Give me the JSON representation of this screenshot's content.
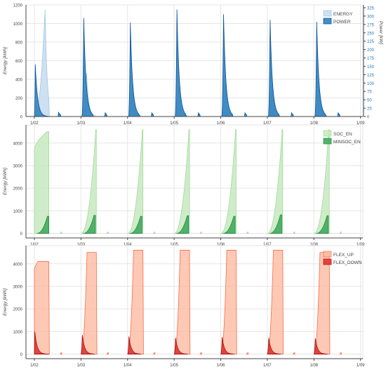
{
  "chart_data": [
    {
      "type": "area",
      "x_unit": "day",
      "x_ticks": [
        "1/02",
        "1/03",
        "1/04",
        "1/05",
        "1/06",
        "1/07",
        "1/08",
        "1/09"
      ],
      "xlim": [
        1.82,
        9.05
      ],
      "ylabel": "Energy [kWh]",
      "ylim": [
        0,
        1200
      ],
      "y_ticks": [
        0,
        200,
        400,
        600,
        800,
        1000,
        1200
      ],
      "y2label": "Power [kW]",
      "y2lim": [
        0,
        1200
      ],
      "y2_ticks": [
        0,
        25,
        50,
        75,
        100,
        125,
        150,
        175,
        200,
        225,
        250,
        275,
        300,
        325
      ],
      "y2_tick_spacing": 90,
      "grid": true,
      "legend_position": "top-right",
      "series": [
        {
          "name": "ENERGY",
          "color": "#c6dbef",
          "stroke": "#9ecae1",
          "opacity": 0.85,
          "decay": 0.045,
          "events": [
            {
              "day": 2.0,
              "start": 0.0,
              "peak": 0.23,
              "end": 0.31,
              "value": 1150
            },
            {
              "day": 3.0,
              "start": 0.02,
              "peak": 0.12,
              "end": 0.3,
              "value": 470
            },
            {
              "day": 4.0,
              "start": 0.02,
              "peak": 0.11,
              "end": 0.28,
              "value": 360
            },
            {
              "day": 5.0,
              "start": 0.02,
              "peak": 0.1,
              "end": 0.27,
              "value": 330
            },
            {
              "day": 6.0,
              "start": 0.02,
              "peak": 0.1,
              "end": 0.26,
              "value": 350
            },
            {
              "day": 7.0,
              "start": 0.02,
              "peak": 0.1,
              "end": 0.26,
              "value": 320
            },
            {
              "day": 8.0,
              "start": 0.02,
              "peak": 0.1,
              "end": 0.27,
              "value": 380
            }
          ]
        },
        {
          "name": "POWER",
          "color": "#3182bd",
          "stroke": "#08519c",
          "opacity": 0.9,
          "decay": 0.05,
          "events": [
            {
              "day": 2.0,
              "start": 0.0,
              "peak": 0.02,
              "end": 0.3,
              "value": 560
            },
            {
              "day": 2.5,
              "start": 0.0,
              "peak": 0.02,
              "end": 0.06,
              "value": 45
            },
            {
              "day": 3.0,
              "start": 0.02,
              "peak": 0.06,
              "end": 0.25,
              "value": 1060
            },
            {
              "day": 3.5,
              "start": 0.0,
              "peak": 0.02,
              "end": 0.05,
              "value": 40
            },
            {
              "day": 4.0,
              "start": 0.02,
              "peak": 0.06,
              "end": 0.25,
              "value": 1010
            },
            {
              "day": 4.5,
              "start": 0.0,
              "peak": 0.02,
              "end": 0.05,
              "value": 40
            },
            {
              "day": 5.0,
              "start": 0.02,
              "peak": 0.06,
              "end": 0.25,
              "value": 1150
            },
            {
              "day": 5.5,
              "start": 0.0,
              "peak": 0.02,
              "end": 0.05,
              "value": 40
            },
            {
              "day": 6.0,
              "start": 0.02,
              "peak": 0.06,
              "end": 0.25,
              "value": 1100
            },
            {
              "day": 6.5,
              "start": 0.0,
              "peak": 0.02,
              "end": 0.05,
              "value": 40
            },
            {
              "day": 7.0,
              "start": 0.02,
              "peak": 0.06,
              "end": 0.25,
              "value": 1040
            },
            {
              "day": 7.5,
              "start": 0.0,
              "peak": 0.02,
              "end": 0.05,
              "value": 40
            },
            {
              "day": 8.0,
              "start": 0.02,
              "peak": 0.06,
              "end": 0.25,
              "value": 1020
            },
            {
              "day": 8.5,
              "start": 0.0,
              "peak": 0.02,
              "end": 0.05,
              "value": 40
            }
          ]
        }
      ]
    },
    {
      "type": "area",
      "x_unit": "day",
      "x_ticks": [
        "1/02",
        "1/03",
        "1/04",
        "1/05",
        "1/06",
        "1/07",
        "1/08",
        "1/09"
      ],
      "xlim": [
        1.82,
        9.05
      ],
      "ylabel": "Energy [kWh]",
      "ylim": [
        -200,
        4800
      ],
      "y_ticks": [
        0,
        1000,
        2000,
        3000,
        4000
      ],
      "grid": true,
      "legend_position": "top-right",
      "series": [
        {
          "name": "SOC_EN",
          "color": "#c7e9c0",
          "stroke": "#a1d99b",
          "opacity": 0.85,
          "events": [
            {
              "day": 2.0,
              "start": 0.0,
              "peak": 0.27,
              "end": 0.31,
              "value": 4500,
              "from": 3700,
              "cap": 0.0
            },
            {
              "day": 3.0,
              "start": 0.0,
              "peak": 0.32,
              "end": 0.33,
              "value": 4600,
              "cap": 0.0
            },
            {
              "day": 4.0,
              "start": 0.0,
              "peak": 0.32,
              "end": 0.33,
              "value": 4600,
              "cap": 0.0
            },
            {
              "day": 5.0,
              "start": 0.0,
              "peak": 0.32,
              "end": 0.33,
              "value": 4600,
              "cap": 0.0
            },
            {
              "day": 6.0,
              "start": 0.0,
              "peak": 0.32,
              "end": 0.33,
              "value": 4600,
              "cap": 0.0
            },
            {
              "day": 7.0,
              "start": 0.0,
              "peak": 0.32,
              "end": 0.33,
              "value": 4600,
              "cap": 0.0
            },
            {
              "day": 8.0,
              "start": 0.0,
              "peak": 0.32,
              "end": 0.33,
              "value": 4600,
              "cap": 0.0
            },
            {
              "day": 2.55,
              "start": 0.0,
              "peak": 0.02,
              "end": 0.04,
              "value": 60,
              "cap": 0.0
            },
            {
              "day": 3.55,
              "start": 0.0,
              "peak": 0.02,
              "end": 0.04,
              "value": 60,
              "cap": 0.0
            },
            {
              "day": 4.55,
              "start": 0.0,
              "peak": 0.02,
              "end": 0.04,
              "value": 60,
              "cap": 0.0
            },
            {
              "day": 5.55,
              "start": 0.0,
              "peak": 0.02,
              "end": 0.04,
              "value": 60,
              "cap": 0.0
            },
            {
              "day": 6.55,
              "start": 0.0,
              "peak": 0.02,
              "end": 0.04,
              "value": 60,
              "cap": 0.0
            },
            {
              "day": 7.55,
              "start": 0.0,
              "peak": 0.02,
              "end": 0.04,
              "value": 60,
              "cap": 0.0
            },
            {
              "day": 8.55,
              "start": 0.0,
              "peak": 0.02,
              "end": 0.04,
              "value": 60,
              "cap": 0.0
            }
          ]
        },
        {
          "name": "MINSOC_EN",
          "color": "#41ab5d",
          "stroke": "#238b45",
          "opacity": 0.9,
          "events": [
            {
              "day": 2.0,
              "start": 0.05,
              "peak": 0.28,
              "end": 0.31,
              "value": 760,
              "cap": 0.0
            },
            {
              "day": 3.0,
              "start": 0.05,
              "peak": 0.28,
              "end": 0.31,
              "value": 800,
              "cap": 0.0
            },
            {
              "day": 4.0,
              "start": 0.05,
              "peak": 0.28,
              "end": 0.31,
              "value": 760,
              "cap": 0.0
            },
            {
              "day": 5.0,
              "start": 0.05,
              "peak": 0.28,
              "end": 0.31,
              "value": 780,
              "cap": 0.0
            },
            {
              "day": 6.0,
              "start": 0.05,
              "peak": 0.28,
              "end": 0.31,
              "value": 760,
              "cap": 0.0
            },
            {
              "day": 7.0,
              "start": 0.05,
              "peak": 0.28,
              "end": 0.31,
              "value": 820,
              "cap": 0.0
            },
            {
              "day": 8.0,
              "start": 0.05,
              "peak": 0.28,
              "end": 0.31,
              "value": 780,
              "cap": 0.0
            }
          ]
        }
      ]
    },
    {
      "type": "area",
      "x_unit": "day",
      "x_ticks": [
        "1/02",
        "1/03",
        "1/04",
        "1/05",
        "1/06",
        "1/07",
        "1/08",
        "1/09"
      ],
      "xlim": [
        1.82,
        9.05
      ],
      "ylabel": "Energy [kWh]",
      "ylim": [
        -200,
        4800
      ],
      "y_ticks": [
        0,
        1000,
        2000,
        3000,
        4000
      ],
      "grid": true,
      "legend_position": "top-right",
      "series": [
        {
          "name": "FLEX_UP",
          "color": "#fcbba1",
          "stroke": "#fb6a4a",
          "opacity": 0.8,
          "events": [
            {
              "day": 2.0,
              "start": 0.0,
              "peak": 0.08,
              "end": 0.31,
              "value": 4100,
              "from": 3700
            },
            {
              "day": 3.0,
              "start": 0.0,
              "peak": 0.13,
              "end": 0.33,
              "value": 4500
            },
            {
              "day": 4.0,
              "start": 0.0,
              "peak": 0.13,
              "end": 0.33,
              "value": 4600
            },
            {
              "day": 5.0,
              "start": 0.0,
              "peak": 0.13,
              "end": 0.33,
              "value": 4600
            },
            {
              "day": 6.0,
              "start": 0.0,
              "peak": 0.13,
              "end": 0.33,
              "value": 4600
            },
            {
              "day": 7.0,
              "start": 0.0,
              "peak": 0.13,
              "end": 0.33,
              "value": 4600
            },
            {
              "day": 8.0,
              "start": 0.0,
              "peak": 0.13,
              "end": 0.33,
              "value": 4500
            },
            {
              "day": 2.55,
              "start": 0.0,
              "peak": 0.02,
              "end": 0.04,
              "value": 60,
              "cap": 0.0
            },
            {
              "day": 3.55,
              "start": 0.0,
              "peak": 0.02,
              "end": 0.04,
              "value": 60,
              "cap": 0.0
            },
            {
              "day": 4.55,
              "start": 0.0,
              "peak": 0.02,
              "end": 0.04,
              "value": 60,
              "cap": 0.0
            },
            {
              "day": 5.55,
              "start": 0.0,
              "peak": 0.02,
              "end": 0.04,
              "value": 60,
              "cap": 0.0
            },
            {
              "day": 6.55,
              "start": 0.0,
              "peak": 0.02,
              "end": 0.04,
              "value": 60,
              "cap": 0.0
            },
            {
              "day": 7.55,
              "start": 0.0,
              "peak": 0.02,
              "end": 0.04,
              "value": 60,
              "cap": 0.0
            },
            {
              "day": 8.55,
              "start": 0.0,
              "peak": 0.02,
              "end": 0.04,
              "value": 60,
              "cap": 0.0
            }
          ]
        },
        {
          "name": "FLEX_DOWN",
          "color": "#de2d26",
          "stroke": "#a50f15",
          "opacity": 0.85,
          "decay": 0.05,
          "events": [
            {
              "day": 2.0,
              "start": 0.0,
              "peak": 0.01,
              "end": 0.3,
              "value": 1000
            },
            {
              "day": 3.0,
              "start": 0.0,
              "peak": 0.03,
              "end": 0.28,
              "value": 850
            },
            {
              "day": 4.0,
              "start": 0.0,
              "peak": 0.03,
              "end": 0.28,
              "value": 780
            },
            {
              "day": 5.0,
              "start": 0.0,
              "peak": 0.03,
              "end": 0.28,
              "value": 720
            },
            {
              "day": 6.0,
              "start": 0.0,
              "peak": 0.03,
              "end": 0.28,
              "value": 760
            },
            {
              "day": 7.0,
              "start": 0.0,
              "peak": 0.03,
              "end": 0.28,
              "value": 720
            },
            {
              "day": 8.0,
              "start": 0.0,
              "peak": 0.03,
              "end": 0.28,
              "value": 700
            }
          ]
        }
      ]
    }
  ]
}
